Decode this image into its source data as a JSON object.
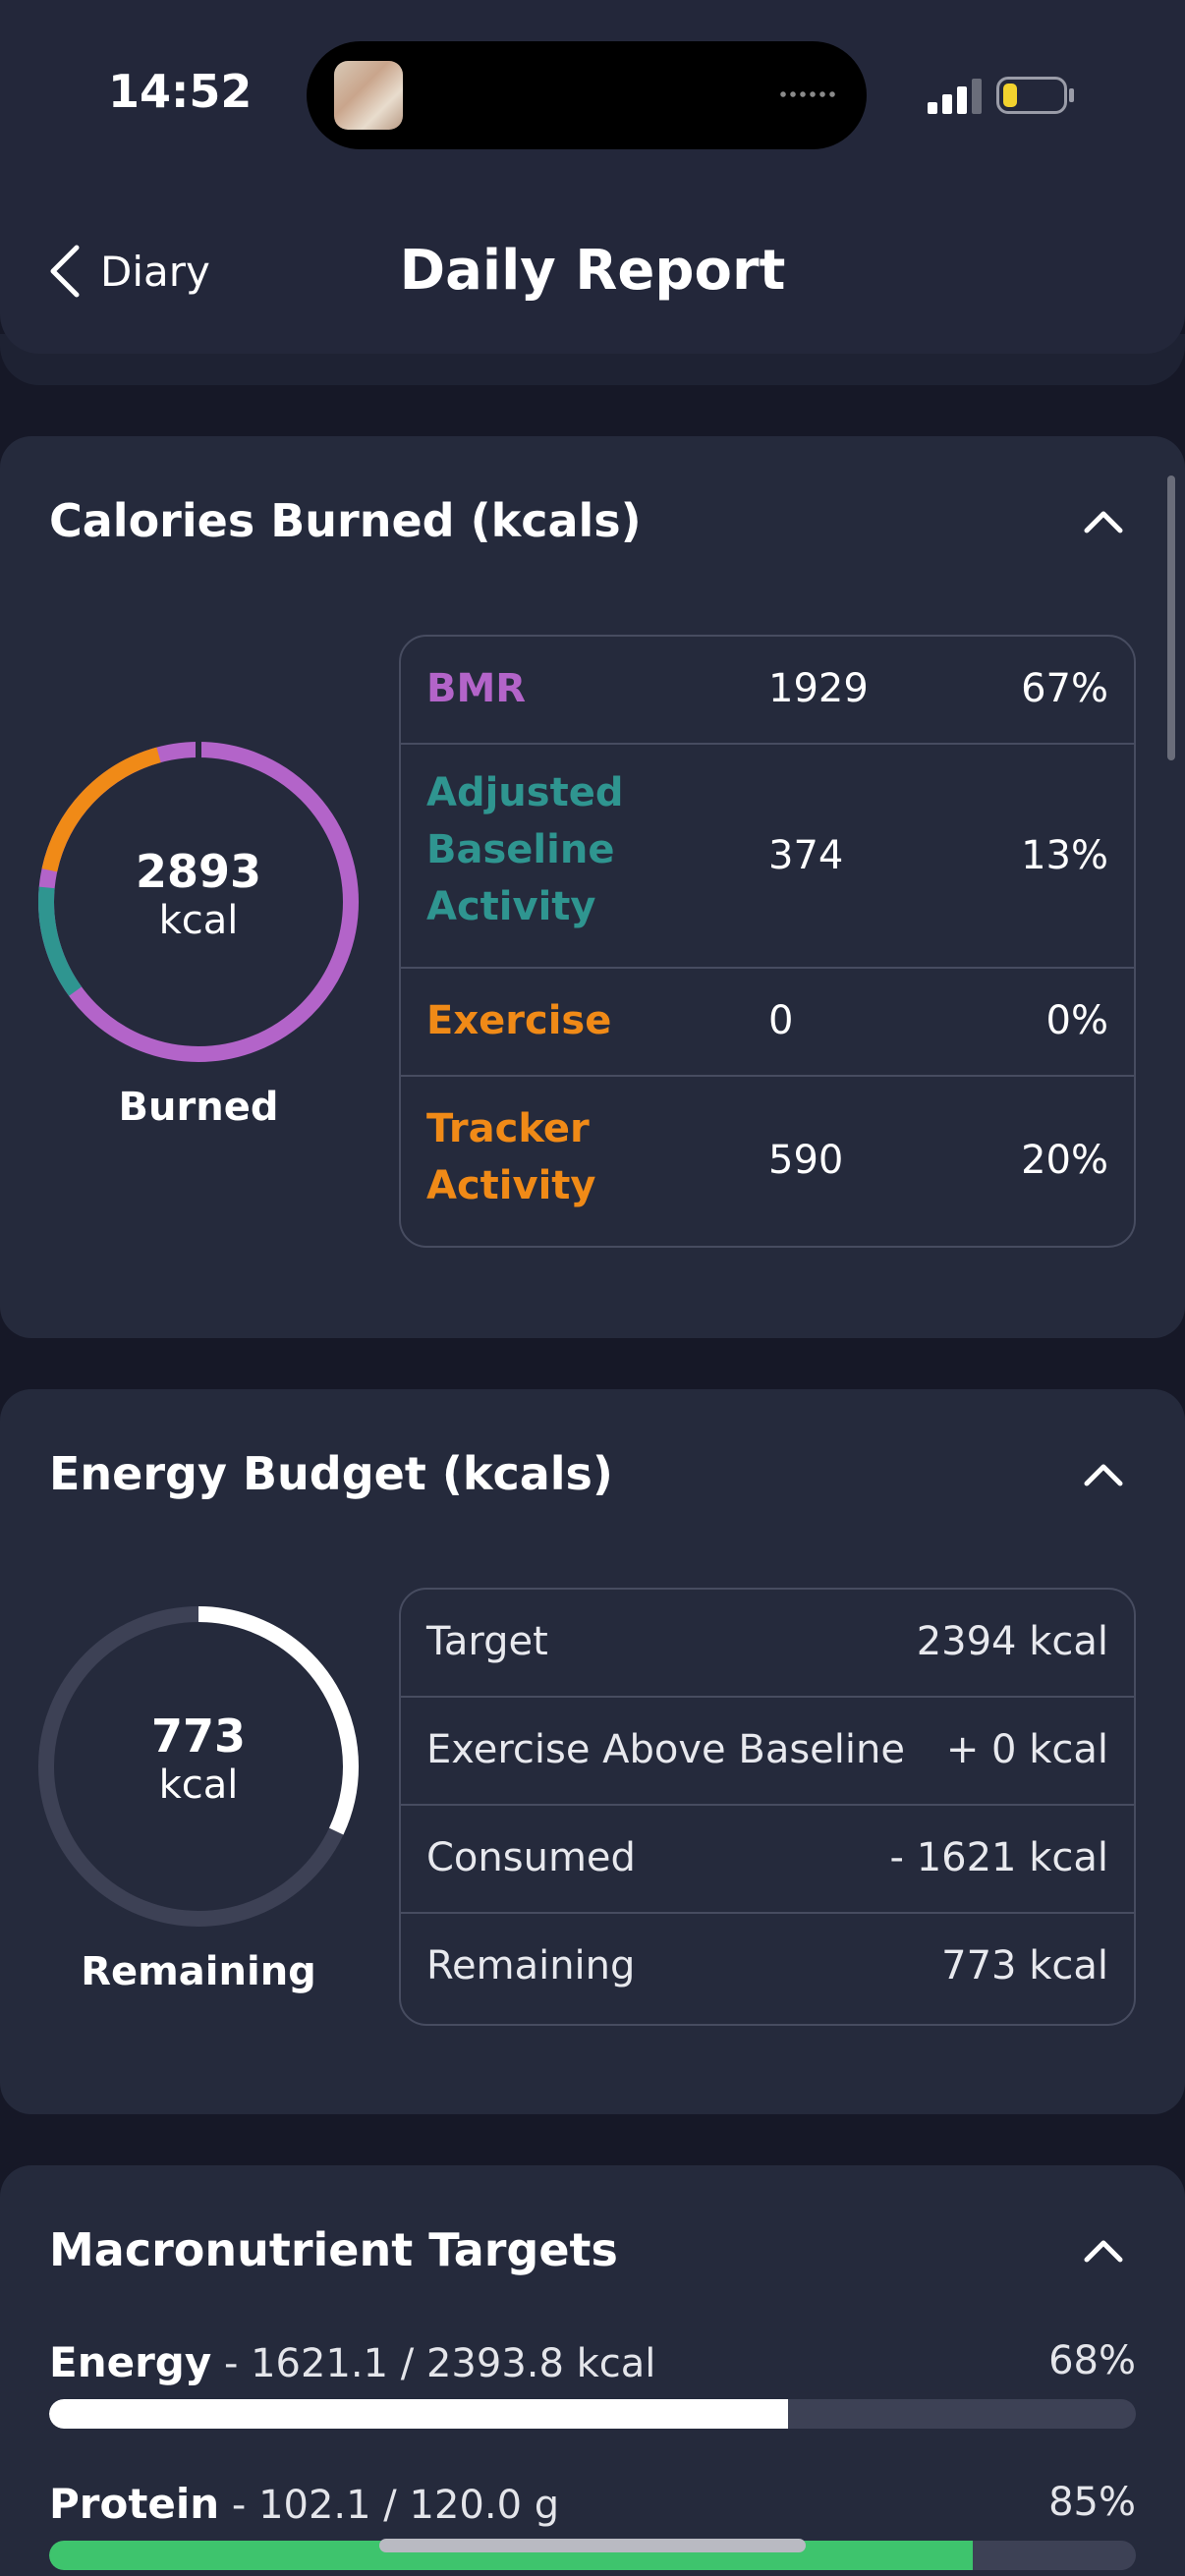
{
  "status_bar": {
    "time": "14:52"
  },
  "header": {
    "back_label": "Diary",
    "title": "Daily Report"
  },
  "calories_burned": {
    "title": "Calories Burned (kcals)",
    "ring_value": "2893",
    "ring_unit": "kcal",
    "ring_caption": "Burned",
    "rows": [
      {
        "label": "BMR",
        "value": "1929",
        "percent": "67%",
        "color": "#b364c9"
      },
      {
        "label": "Adjusted Baseline Activity",
        "value": "374",
        "percent": "13%",
        "color": "#2f9590"
      },
      {
        "label": "Exercise",
        "value": "0",
        "percent": "0%",
        "color": "#f08a17"
      },
      {
        "label": "Tracker Activity",
        "value": "590",
        "percent": "20%",
        "color": "#f08a17"
      }
    ]
  },
  "energy_budget": {
    "title": "Energy Budget (kcals)",
    "ring_value": "773",
    "ring_unit": "kcal",
    "ring_caption": "Remaining",
    "remaining_fraction": 0.32,
    "rows": [
      {
        "label": "Target",
        "amount": "2394 kcal"
      },
      {
        "label": "Exercise Above Baseline",
        "amount": "+ 0 kcal"
      },
      {
        "label": "Consumed",
        "amount": "- 1621 kcal"
      },
      {
        "label": "Remaining",
        "amount": "773 kcal"
      }
    ]
  },
  "macronutrients": {
    "title": "Macronutrient Targets",
    "items": [
      {
        "name": "Energy",
        "detail": " - 1621.1 / 2393.8 kcal",
        "percent": "68%",
        "fraction": 0.68,
        "color": "#ffffff"
      },
      {
        "name": "Protein",
        "detail": " - 102.1 / 120.0 g",
        "percent": "85%",
        "fraction": 0.85,
        "color": "#3ec46d"
      }
    ]
  },
  "colors": {
    "background": "#161827",
    "card": "#252a3c",
    "bmr": "#b364c9",
    "baseline": "#2f9590",
    "exercise": "#f08a17"
  }
}
